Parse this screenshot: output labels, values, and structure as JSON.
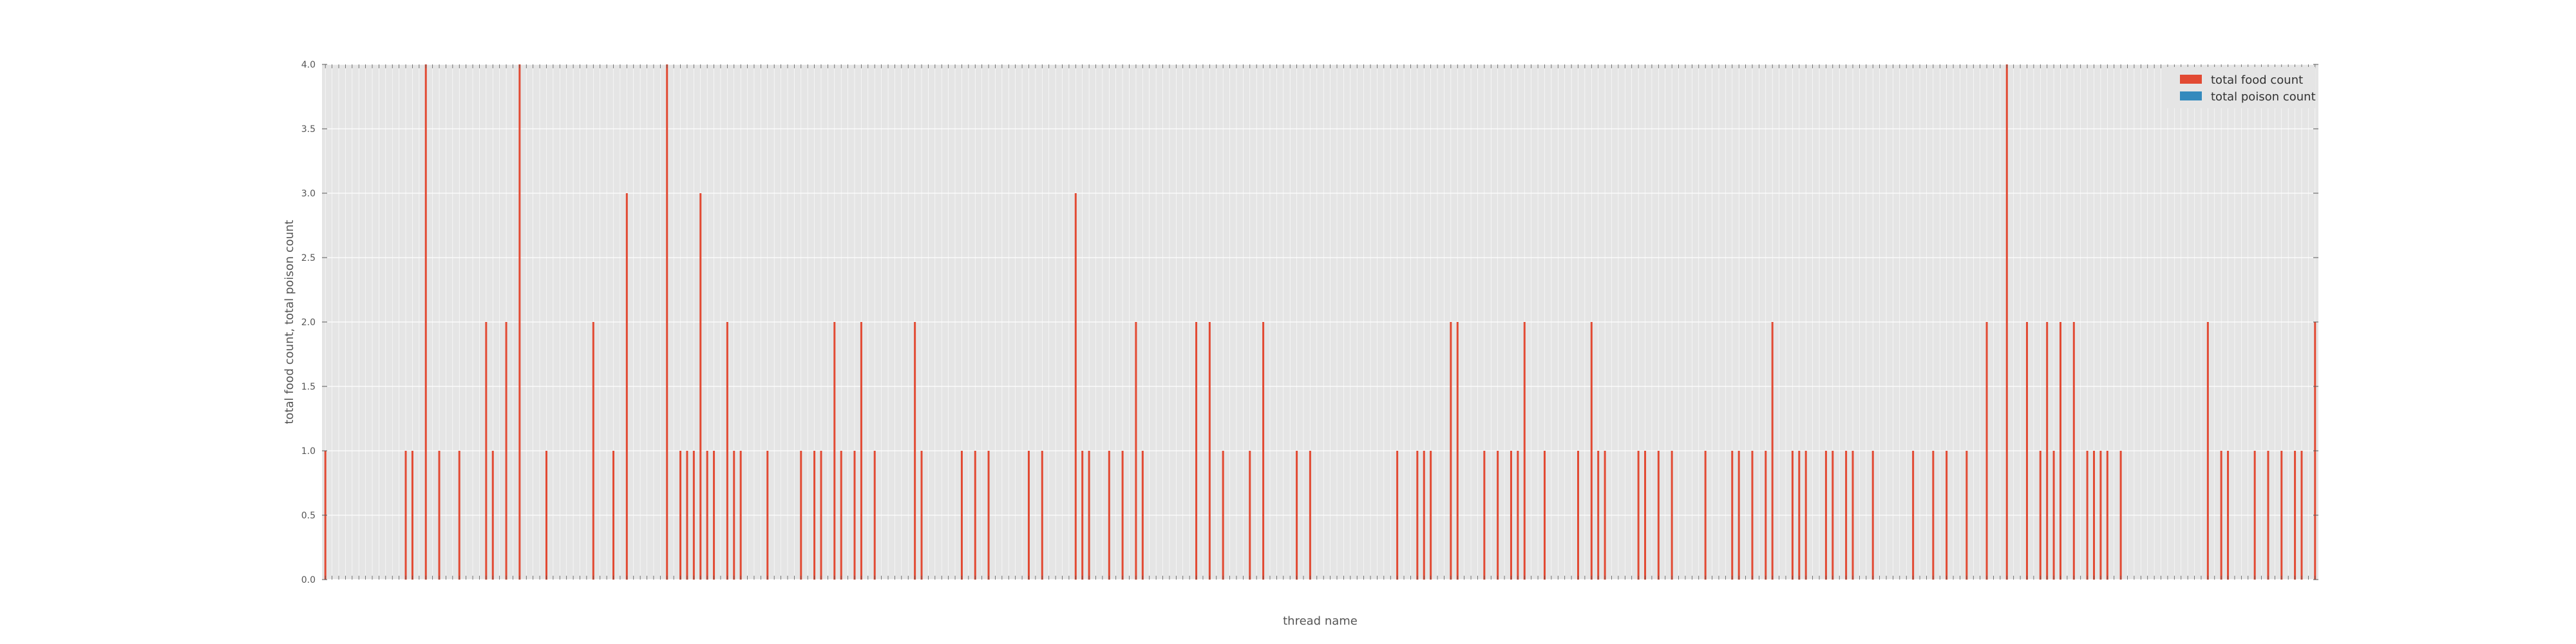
{
  "chart_data": {
    "type": "bar",
    "title": "",
    "xlabel": "thread name",
    "ylabel": "total food count, total poison count",
    "ylim": [
      0,
      4
    ],
    "yticks": [
      "0.0",
      "0.5",
      "1.0",
      "1.5",
      "2.0",
      "2.5",
      "3.0",
      "3.5",
      "4.0"
    ],
    "grid": true,
    "legend_position": "top-right",
    "colors": {
      "food": "#e24a33",
      "poison": "#348abd",
      "background": "#e5e5e5",
      "grid": "#ffffff"
    },
    "category_count": 298,
    "nonzero_bars": [
      {
        "index": 0,
        "value": 1
      },
      {
        "index": 12,
        "value": 1
      },
      {
        "index": 13,
        "value": 1
      },
      {
        "index": 15,
        "value": 4
      },
      {
        "index": 17,
        "value": 1
      },
      {
        "index": 20,
        "value": 1
      },
      {
        "index": 24,
        "value": 2
      },
      {
        "index": 25,
        "value": 1
      },
      {
        "index": 27,
        "value": 2
      },
      {
        "index": 29,
        "value": 4
      },
      {
        "index": 33,
        "value": 1
      },
      {
        "index": 40,
        "value": 2
      },
      {
        "index": 43,
        "value": 1
      },
      {
        "index": 45,
        "value": 3
      },
      {
        "index": 51,
        "value": 4
      },
      {
        "index": 53,
        "value": 1
      },
      {
        "index": 54,
        "value": 1
      },
      {
        "index": 55,
        "value": 1
      },
      {
        "index": 56,
        "value": 3
      },
      {
        "index": 57,
        "value": 1
      },
      {
        "index": 58,
        "value": 1
      },
      {
        "index": 60,
        "value": 2
      },
      {
        "index": 61,
        "value": 1
      },
      {
        "index": 62,
        "value": 1
      },
      {
        "index": 66,
        "value": 1
      },
      {
        "index": 71,
        "value": 1
      },
      {
        "index": 73,
        "value": 1
      },
      {
        "index": 74,
        "value": 1
      },
      {
        "index": 76,
        "value": 2
      },
      {
        "index": 77,
        "value": 1
      },
      {
        "index": 79,
        "value": 1
      },
      {
        "index": 80,
        "value": 2
      },
      {
        "index": 82,
        "value": 1
      },
      {
        "index": 88,
        "value": 2
      },
      {
        "index": 89,
        "value": 1
      },
      {
        "index": 95,
        "value": 1
      },
      {
        "index": 97,
        "value": 1
      },
      {
        "index": 99,
        "value": 1
      },
      {
        "index": 105,
        "value": 1
      },
      {
        "index": 107,
        "value": 1
      },
      {
        "index": 112,
        "value": 3
      },
      {
        "index": 113,
        "value": 1
      },
      {
        "index": 114,
        "value": 1
      },
      {
        "index": 117,
        "value": 1
      },
      {
        "index": 119,
        "value": 1
      },
      {
        "index": 121,
        "value": 2
      },
      {
        "index": 122,
        "value": 1
      },
      {
        "index": 130,
        "value": 2
      },
      {
        "index": 132,
        "value": 2
      },
      {
        "index": 134,
        "value": 1
      },
      {
        "index": 138,
        "value": 1
      },
      {
        "index": 140,
        "value": 2
      },
      {
        "index": 145,
        "value": 1
      },
      {
        "index": 147,
        "value": 1
      },
      {
        "index": 160,
        "value": 1
      },
      {
        "index": 163,
        "value": 1
      },
      {
        "index": 164,
        "value": 1
      },
      {
        "index": 165,
        "value": 1
      },
      {
        "index": 168,
        "value": 2
      },
      {
        "index": 169,
        "value": 2
      },
      {
        "index": 173,
        "value": 1
      },
      {
        "index": 175,
        "value": 1
      },
      {
        "index": 177,
        "value": 1
      },
      {
        "index": 178,
        "value": 1
      },
      {
        "index": 179,
        "value": 2
      },
      {
        "index": 182,
        "value": 1
      },
      {
        "index": 187,
        "value": 1
      },
      {
        "index": 189,
        "value": 2
      },
      {
        "index": 190,
        "value": 1
      },
      {
        "index": 191,
        "value": 1
      },
      {
        "index": 196,
        "value": 1
      },
      {
        "index": 197,
        "value": 1
      },
      {
        "index": 199,
        "value": 1
      },
      {
        "index": 201,
        "value": 1
      },
      {
        "index": 206,
        "value": 1
      },
      {
        "index": 210,
        "value": 1
      },
      {
        "index": 211,
        "value": 1
      },
      {
        "index": 213,
        "value": 1
      },
      {
        "index": 215,
        "value": 1
      },
      {
        "index": 216,
        "value": 2
      },
      {
        "index": 219,
        "value": 1
      },
      {
        "index": 220,
        "value": 1
      },
      {
        "index": 221,
        "value": 1
      },
      {
        "index": 224,
        "value": 1
      },
      {
        "index": 225,
        "value": 1
      },
      {
        "index": 227,
        "value": 1
      },
      {
        "index": 228,
        "value": 1
      },
      {
        "index": 231,
        "value": 1
      },
      {
        "index": 237,
        "value": 1
      },
      {
        "index": 240,
        "value": 1
      },
      {
        "index": 242,
        "value": 1
      },
      {
        "index": 245,
        "value": 1
      },
      {
        "index": 248,
        "value": 2
      },
      {
        "index": 251,
        "value": 4
      },
      {
        "index": 254,
        "value": 2
      },
      {
        "index": 256,
        "value": 1
      },
      {
        "index": 257,
        "value": 2
      },
      {
        "index": 258,
        "value": 1
      },
      {
        "index": 259,
        "value": 2
      },
      {
        "index": 261,
        "value": 2
      },
      {
        "index": 263,
        "value": 1
      },
      {
        "index": 264,
        "value": 1
      },
      {
        "index": 265,
        "value": 1
      },
      {
        "index": 266,
        "value": 1
      },
      {
        "index": 268,
        "value": 1
      },
      {
        "index": 281,
        "value": 2
      },
      {
        "index": 283,
        "value": 1
      },
      {
        "index": 284,
        "value": 1
      },
      {
        "index": 288,
        "value": 1
      },
      {
        "index": 290,
        "value": 1
      },
      {
        "index": 292,
        "value": 1
      },
      {
        "index": 294,
        "value": 1
      },
      {
        "index": 295,
        "value": 1
      },
      {
        "index": 297,
        "value": 2
      }
    ],
    "series": [
      {
        "name": "total food count",
        "color": "#e24a33"
      },
      {
        "name": "total poison count",
        "color": "#348abd"
      }
    ]
  }
}
